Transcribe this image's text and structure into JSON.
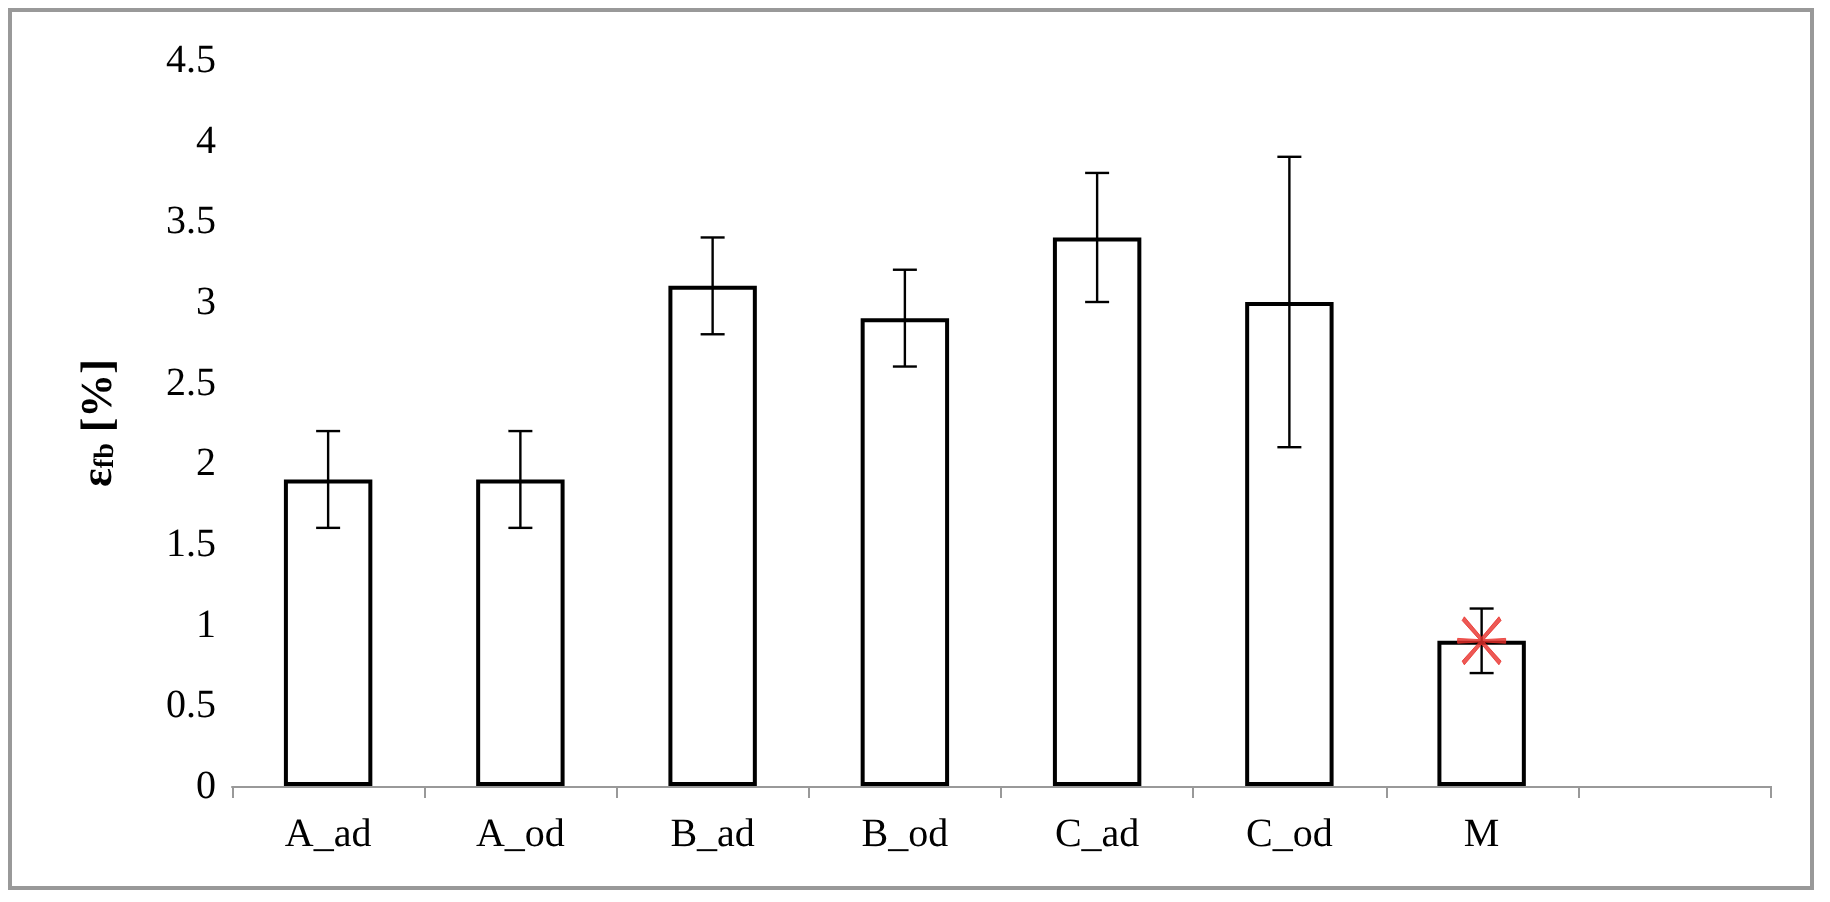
{
  "chart_data": {
    "type": "bar",
    "ylabel": "ε$_{fb}$ [%]",
    "categories": [
      "A_ad",
      "A_od",
      "B_ad",
      "B_od",
      "C_ad",
      "C_od",
      "M",
      null
    ],
    "series": [
      {
        "color": "#ffffff",
        "values": [
          1.9,
          1.9,
          3.1,
          2.9,
          3.4,
          3.0,
          0.9,
          null
        ],
        "errors": [
          [
            1.6,
            2.2
          ],
          [
            1.6,
            2.2
          ],
          [
            2.8,
            3.4
          ],
          [
            2.6,
            3.2
          ],
          [
            3.0,
            3.8
          ],
          [
            2.1,
            3.9
          ],
          [
            0.7,
            1.1
          ],
          null
        ]
      },
      {
        "type": "scatter",
        "color": "#e8302a",
        "x": [
          "M"
        ],
        "values": [
          0.9
        ],
        "marker": "cross"
      }
    ],
    "ylim": [
      0,
      4.5
    ],
    "yticks": [
      0,
      0.5,
      1,
      1.5,
      2,
      2.5,
      3,
      3.5,
      4,
      4.5
    ],
    "grid": false
  }
}
